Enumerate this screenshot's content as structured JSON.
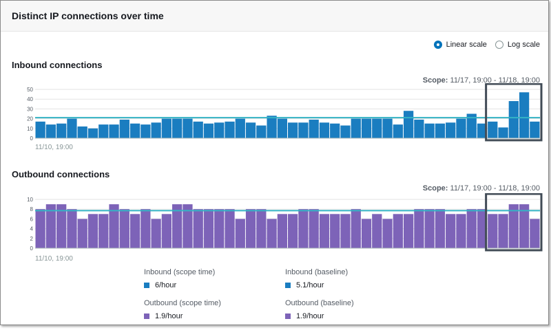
{
  "title": "Distinct IP connections over time",
  "scale_options": {
    "linear": "Linear scale",
    "log": "Log scale",
    "selected": "linear"
  },
  "colors": {
    "inbound": "#1a7dc0",
    "outbound": "#7d63b8",
    "baseline": "#34b3c4",
    "highlight": "#414b56"
  },
  "inbound": {
    "title": "Inbound connections",
    "scope_label": "Scope:",
    "scope_value": "11/17, 19:00 - 11/18, 19:00",
    "start_label": "11/10, 19:00"
  },
  "outbound": {
    "title": "Outbound connections",
    "scope_label": "Scope:",
    "scope_value": "11/17, 19:00 - 11/18, 19:00",
    "start_label": "11/10, 19:00"
  },
  "legend": [
    {
      "label": "Inbound (scope time)",
      "value": "6/hour",
      "color": "#1a7dc0"
    },
    {
      "label": "Inbound (baseline)",
      "value": "5.1/hour",
      "color": "#1a7dc0"
    },
    {
      "label": "Outbound (scope time)",
      "value": "1.9/hour",
      "color": "#7d63b8"
    },
    {
      "label": "Outbound (baseline)",
      "value": "1.9/hour",
      "color": "#7d63b8"
    }
  ],
  "chart_data": [
    {
      "type": "bar",
      "title": "Inbound connections",
      "ylim": [
        0,
        50
      ],
      "yticks": [
        0,
        10,
        20,
        30,
        40,
        50
      ],
      "baseline": 21,
      "grid": true,
      "values": [
        17,
        14,
        15,
        20,
        12,
        10,
        14,
        14,
        19,
        15,
        14,
        16,
        20,
        20,
        20,
        17,
        15,
        16,
        17,
        20,
        16,
        13,
        23,
        20,
        16,
        16,
        19,
        16,
        15,
        13,
        20,
        20,
        20,
        20,
        14,
        28,
        19,
        15,
        15,
        16,
        20,
        25,
        15,
        17,
        11,
        38,
        47,
        17
      ],
      "highlight_range": [
        43,
        47
      ]
    },
    {
      "type": "bar",
      "title": "Outbound connections",
      "ylim": [
        0,
        10
      ],
      "yticks": [
        0,
        2,
        4,
        6,
        8,
        10
      ],
      "baseline": 7.7,
      "grid": true,
      "values": [
        8,
        9,
        9,
        8,
        6,
        7,
        7,
        9,
        8,
        7,
        8,
        6,
        7,
        9,
        9,
        8,
        8,
        8,
        8,
        6,
        8,
        8,
        6,
        7,
        7,
        8,
        8,
        7,
        7,
        7,
        8,
        6,
        7,
        6,
        7,
        7,
        8,
        8,
        8,
        7,
        7,
        8,
        8,
        7,
        7,
        9,
        9,
        6
      ],
      "highlight_range": [
        43,
        47
      ]
    }
  ]
}
